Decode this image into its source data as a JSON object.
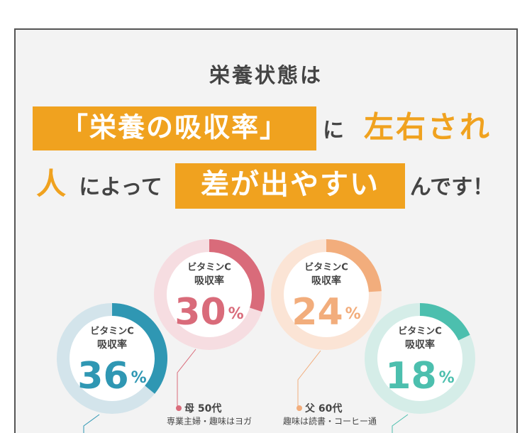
{
  "heading": {
    "line1": "栄養状態は",
    "highlight1": "「栄養の吸収率」",
    "text1": "に",
    "accent1": "左右され",
    "accent2": "人",
    "text2": "によって",
    "highlight2": "差が出やすい",
    "text3": "んです！"
  },
  "donuts": [
    {
      "label1": "ビタミンC",
      "label2": "吸収率",
      "value": 30,
      "unit": "%",
      "color": "#d96b7a",
      "track_color": "#f6dde1",
      "person": "母 50代",
      "description": "専業主婦・趣味はヨガ"
    },
    {
      "label1": "ビタミンC",
      "label2": "吸収率",
      "value": 24,
      "unit": "%",
      "color": "#f2ad7c",
      "track_color": "#fbe4d5",
      "person": "父 60代",
      "description": "趣味は読書・コーヒー通"
    },
    {
      "label1": "ビタミンC",
      "label2": "吸収率",
      "value": 36,
      "unit": "%",
      "color": "#2f97b3",
      "track_color": "#d3e4eb"
    },
    {
      "label1": "ビタミンC",
      "label2": "吸収率",
      "value": 18,
      "unit": "%",
      "color": "#4cbfae",
      "track_color": "#d5ede8"
    }
  ]
}
